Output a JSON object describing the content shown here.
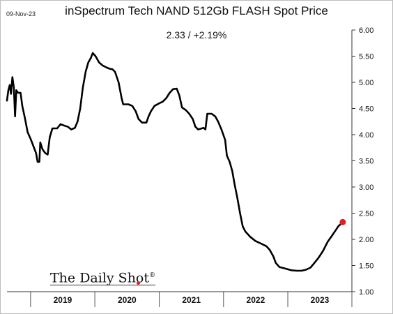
{
  "header": {
    "date": "09-Nov-23",
    "title": "inSpectrum Tech NAND 512Gb FLASH Spot Price",
    "subtitle": "2.33  /  +2.19%"
  },
  "watermark": {
    "brand": "The Daily Shot",
    "mark": "®"
  },
  "chart_data": {
    "type": "line",
    "title": "inSpectrum Tech NAND 512Gb FLASH Spot Price",
    "xlabel": "",
    "ylabel": "",
    "x_ticks": [
      "2019",
      "2020",
      "2021",
      "2022",
      "2023"
    ],
    "y_ticks": [
      "1.00",
      "1.50",
      "2.00",
      "2.50",
      "3.00",
      "3.50",
      "4.00",
      "4.50",
      "5.00",
      "5.50",
      "6.00"
    ],
    "ylim": [
      1.0,
      6.0
    ],
    "xlim": [
      "2018-08-20",
      "2023-12-31"
    ],
    "y_axis_position": "right",
    "grid": false,
    "line_color": "#000000",
    "marker_color": "#e02020",
    "last_point": {
      "date": "2023-11-09",
      "value": 2.33
    },
    "series": [
      {
        "points": [
          [
            "2018-08-20",
            4.65
          ],
          [
            "2018-08-28",
            4.85
          ],
          [
            "2018-09-05",
            4.95
          ],
          [
            "2018-09-12",
            4.78
          ],
          [
            "2018-09-20",
            5.1
          ],
          [
            "2018-09-28",
            4.9
          ],
          [
            "2018-10-05",
            4.35
          ],
          [
            "2018-10-12",
            4.85
          ],
          [
            "2018-10-22",
            4.8
          ],
          [
            "2018-11-05",
            4.8
          ],
          [
            "2018-11-15",
            4.55
          ],
          [
            "2018-12-01",
            4.3
          ],
          [
            "2018-12-15",
            4.05
          ],
          [
            "2019-01-01",
            3.92
          ],
          [
            "2019-01-15",
            3.8
          ],
          [
            "2019-02-01",
            3.65
          ],
          [
            "2019-02-10",
            3.48
          ],
          [
            "2019-02-20",
            3.48
          ],
          [
            "2019-02-25",
            3.85
          ],
          [
            "2019-03-10",
            3.72
          ],
          [
            "2019-03-25",
            3.65
          ],
          [
            "2019-04-08",
            3.62
          ],
          [
            "2019-04-20",
            3.95
          ],
          [
            "2019-05-05",
            4.12
          ],
          [
            "2019-06-01",
            4.12
          ],
          [
            "2019-06-20",
            4.2
          ],
          [
            "2019-07-15",
            4.17
          ],
          [
            "2019-08-01",
            4.15
          ],
          [
            "2019-08-20",
            4.1
          ],
          [
            "2019-09-10",
            4.13
          ],
          [
            "2019-09-25",
            4.25
          ],
          [
            "2019-10-10",
            4.5
          ],
          [
            "2019-10-25",
            4.9
          ],
          [
            "2019-11-10",
            5.2
          ],
          [
            "2019-11-25",
            5.38
          ],
          [
            "2019-12-10",
            5.47
          ],
          [
            "2019-12-20",
            5.56
          ],
          [
            "2020-01-05",
            5.5
          ],
          [
            "2020-01-25",
            5.38
          ],
          [
            "2020-02-15",
            5.32
          ],
          [
            "2020-03-10",
            5.28
          ],
          [
            "2020-03-25",
            5.26
          ],
          [
            "2020-04-10",
            5.25
          ],
          [
            "2020-04-25",
            5.2
          ],
          [
            "2020-05-15",
            5.0
          ],
          [
            "2020-06-01",
            4.7
          ],
          [
            "2020-06-10",
            4.58
          ],
          [
            "2020-07-10",
            4.58
          ],
          [
            "2020-08-01",
            4.55
          ],
          [
            "2020-08-20",
            4.45
          ],
          [
            "2020-09-05",
            4.3
          ],
          [
            "2020-09-25",
            4.23
          ],
          [
            "2020-10-20",
            4.23
          ],
          [
            "2020-11-01",
            4.35
          ],
          [
            "2020-11-15",
            4.45
          ],
          [
            "2020-12-05",
            4.55
          ],
          [
            "2021-01-01",
            4.6
          ],
          [
            "2021-01-20",
            4.63
          ],
          [
            "2021-02-10",
            4.7
          ],
          [
            "2021-03-01",
            4.8
          ],
          [
            "2021-03-20",
            4.87
          ],
          [
            "2021-04-10",
            4.88
          ],
          [
            "2021-04-25",
            4.75
          ],
          [
            "2021-05-10",
            4.52
          ],
          [
            "2021-06-01",
            4.47
          ],
          [
            "2021-06-20",
            4.4
          ],
          [
            "2021-07-10",
            4.3
          ],
          [
            "2021-07-25",
            4.15
          ],
          [
            "2021-08-10",
            4.1
          ],
          [
            "2021-09-10",
            4.13
          ],
          [
            "2021-09-20",
            4.1
          ],
          [
            "2021-10-01",
            4.4
          ],
          [
            "2021-10-25",
            4.4
          ],
          [
            "2021-11-15",
            4.35
          ],
          [
            "2021-12-01",
            4.25
          ],
          [
            "2021-12-20",
            4.1
          ],
          [
            "2022-01-10",
            3.9
          ],
          [
            "2022-01-20",
            3.6
          ],
          [
            "2022-02-05",
            3.48
          ],
          [
            "2022-02-20",
            3.3
          ],
          [
            "2022-03-05",
            3.05
          ],
          [
            "2022-03-20",
            2.8
          ],
          [
            "2022-04-05",
            2.5
          ],
          [
            "2022-04-20",
            2.25
          ],
          [
            "2022-05-05",
            2.15
          ],
          [
            "2022-06-01",
            2.05
          ],
          [
            "2022-07-01",
            1.97
          ],
          [
            "2022-08-01",
            1.92
          ],
          [
            "2022-09-01",
            1.87
          ],
          [
            "2022-09-20",
            1.8
          ],
          [
            "2022-10-10",
            1.68
          ],
          [
            "2022-10-25",
            1.55
          ],
          [
            "2022-11-15",
            1.47
          ],
          [
            "2022-12-20",
            1.44
          ],
          [
            "2023-01-20",
            1.41
          ],
          [
            "2023-02-20",
            1.4
          ],
          [
            "2023-03-20",
            1.4
          ],
          [
            "2023-04-15",
            1.42
          ],
          [
            "2023-05-10",
            1.46
          ],
          [
            "2023-06-01",
            1.55
          ],
          [
            "2023-06-25",
            1.65
          ],
          [
            "2023-07-20",
            1.78
          ],
          [
            "2023-08-15",
            1.95
          ],
          [
            "2023-09-05",
            2.05
          ],
          [
            "2023-09-25",
            2.15
          ],
          [
            "2023-10-15",
            2.25
          ],
          [
            "2023-11-09",
            2.33
          ]
        ]
      }
    ]
  }
}
